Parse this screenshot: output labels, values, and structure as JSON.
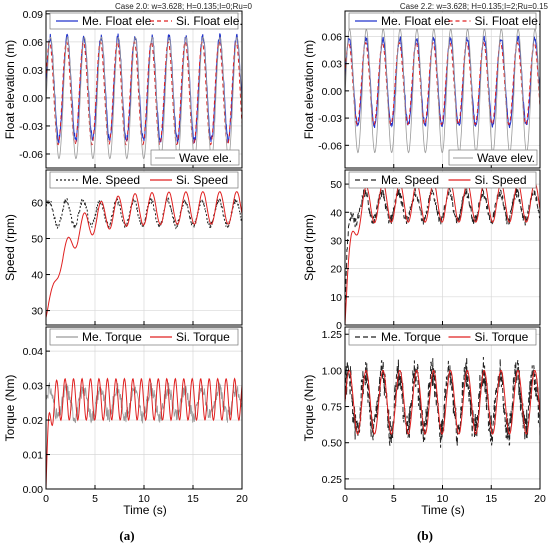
{
  "figure": {
    "colors": {
      "measured_float": "#2233cc",
      "simulated": "#e02020",
      "wave": "#9a9a9a",
      "measured_dark": "#222222",
      "grid": "#d8d8d8"
    },
    "columns": [
      {
        "caption": "Case 2.0: w=3.628; H=0.135;I=0;Ru=0",
        "panel_label": "(a)",
        "xlabel": "Time (s)",
        "xticks": [
          "0",
          "5",
          "10",
          "15",
          "20"
        ],
        "xlim": [
          0,
          20
        ]
      },
      {
        "caption": "Case 2.2: w=3.628; H=0.135;I=2;Ru=0.15",
        "panel_label": "(b)",
        "xlabel": "Time (s)",
        "xticks": [
          "0",
          "5",
          "10",
          "15",
          "20"
        ],
        "xlim": [
          0,
          20
        ]
      }
    ]
  },
  "chart_data": [
    {
      "type": "line",
      "column": 0,
      "row": 0,
      "ylabel": "Float elevation (m)",
      "ylim": [
        -0.075,
        0.093
      ],
      "yticks": [
        "0.09",
        "0.06",
        "0.03",
        "0.00",
        "-0.03",
        "-0.06"
      ],
      "ytick_values": [
        0.09,
        0.06,
        0.03,
        0.0,
        -0.03,
        -0.06
      ],
      "grid": true,
      "legend_top": "top",
      "legend_bottom": "bottom-right",
      "series": [
        {
          "name": "Me. Float ele.",
          "role": "measured_float",
          "legend": "top",
          "dash": "",
          "kind": "sine",
          "amp": 0.055,
          "offset": 0.01,
          "freq": 0.578,
          "phase": 0.0,
          "noise": 0.004
        },
        {
          "name": "Si. Float ele.",
          "role": "simulated",
          "legend": "top",
          "dash": "4,3",
          "kind": "sine",
          "amp": 0.055,
          "offset": 0.005,
          "freq": 0.578,
          "phase": 0.25,
          "noise": 0.0
        },
        {
          "name": "Wave ele.",
          "role": "wave",
          "legend": "bottom",
          "dash": "",
          "kind": "sine",
          "amp": 0.065,
          "offset": 0.0,
          "freq": 0.578,
          "phase": -0.1,
          "noise": 0.0
        }
      ]
    },
    {
      "type": "line",
      "column": 0,
      "row": 1,
      "ylabel": "Speed (rpm)",
      "ylim": [
        26,
        69
      ],
      "yticks": [
        "30",
        "40",
        "50",
        "60"
      ],
      "ytick_values": [
        30,
        40,
        50,
        60
      ],
      "grid": true,
      "legend_top": "top",
      "series": [
        {
          "name": "Me. Speed",
          "role": "measured_dark",
          "legend": "top",
          "dash": "2,2",
          "kind": "sine",
          "amp": 3.5,
          "offset": 57,
          "freq": 0.578,
          "phase": 0.4,
          "noise": 0.8
        },
        {
          "name": "Si. Speed",
          "role": "simulated",
          "legend": "top",
          "dash": "",
          "kind": "rise",
          "amp": 4.5,
          "offset": 58.5,
          "start": 28,
          "tau": 2.2,
          "freq": 0.578,
          "phase": 0.0,
          "noise": 0.0
        }
      ]
    },
    {
      "type": "line",
      "column": 0,
      "row": 2,
      "ylabel": "Torque (Nm)",
      "ylim": [
        0,
        0.047
      ],
      "yticks": [
        "0.00",
        "0.01",
        "0.02",
        "0.03",
        "0.04"
      ],
      "ytick_values": [
        0.0,
        0.01,
        0.02,
        0.03,
        0.04
      ],
      "grid": true,
      "legend_top": "top",
      "series": [
        {
          "name": "Me. Torque",
          "role": "wave",
          "legend": "top",
          "dash": "",
          "kind": "sine",
          "amp": 0.004,
          "offset": 0.025,
          "freq": 0.578,
          "phase": 0.3,
          "noise": 0.002
        },
        {
          "name": "Si. Torque",
          "role": "simulated",
          "legend": "top",
          "dash": "",
          "kind": "rise",
          "amp": 0.006,
          "offset": 0.026,
          "start": 0.0,
          "tau": 0.25,
          "freq": 1.156,
          "phase": 0.0,
          "noise": 0.0
        }
      ]
    },
    {
      "type": "line",
      "column": 1,
      "row": 0,
      "ylabel": "Float elevation (m)",
      "ylim": [
        -0.085,
        0.088
      ],
      "yticks": [
        "0.06",
        "0.03",
        "0.00",
        "-0.03",
        "-0.06"
      ],
      "ytick_values": [
        0.06,
        0.03,
        0.0,
        -0.03,
        -0.06
      ],
      "grid": true,
      "legend_top": "top",
      "legend_bottom": "bottom-right",
      "series": [
        {
          "name": "Me. Float ele.",
          "role": "measured_float",
          "legend": "top",
          "dash": "",
          "kind": "sine",
          "amp": 0.048,
          "offset": 0.01,
          "freq": 0.578,
          "phase": 0.0,
          "noise": 0.003
        },
        {
          "name": "Si. Float ele.",
          "role": "simulated",
          "legend": "top",
          "dash": "4,3",
          "kind": "sine",
          "amp": 0.045,
          "offset": 0.008,
          "freq": 0.578,
          "phase": 0.2,
          "noise": 0.0
        },
        {
          "name": "Wave elev.",
          "role": "wave",
          "legend": "bottom",
          "dash": "",
          "kind": "sine",
          "amp": 0.068,
          "offset": 0.0,
          "freq": 0.578,
          "phase": -0.1,
          "noise": 0.0
        }
      ]
    },
    {
      "type": "line",
      "column": 1,
      "row": 1,
      "ylabel": "Speed (rpm)",
      "ylim": [
        0,
        55
      ],
      "yticks": [
        "0",
        "10",
        "20",
        "30",
        "40",
        "50"
      ],
      "ytick_values": [
        0,
        10,
        20,
        30,
        40,
        50
      ],
      "grid": true,
      "legend_top": "top",
      "series": [
        {
          "name": "Me. Speed",
          "role": "measured_dark",
          "legend": "top",
          "dash": "5,3",
          "kind": "rise",
          "amp": 5,
          "offset": 42,
          "start": 5,
          "tau": 0.3,
          "freq": 0.578,
          "phase": 0.5,
          "noise": 1.8
        },
        {
          "name": "Si. Speed",
          "role": "simulated",
          "legend": "top",
          "dash": "",
          "kind": "rise",
          "amp": 7,
          "offset": 43.5,
          "start": 0,
          "tau": 0.6,
          "freq": 0.578,
          "phase": 0.0,
          "noise": 0.0
        }
      ]
    },
    {
      "type": "line",
      "column": 1,
      "row": 2,
      "ylabel": "Torque (Nm)",
      "ylim": [
        0.18,
        1.3
      ],
      "yticks": [
        "0.25",
        "0.50",
        "0.75",
        "1.00",
        "1.25"
      ],
      "ytick_values": [
        0.25,
        0.5,
        0.75,
        1.0,
        1.25
      ],
      "grid": true,
      "legend_top": "top",
      "series": [
        {
          "name": "Me. Torque",
          "role": "measured_dark",
          "legend": "top",
          "dash": "5,3",
          "kind": "sine",
          "amp": 0.2,
          "offset": 0.78,
          "freq": 0.578,
          "phase": 0.4,
          "noise": 0.12
        },
        {
          "name": "Si. Torque",
          "role": "simulated",
          "legend": "top",
          "dash": "",
          "kind": "sine",
          "amp": 0.22,
          "offset": 0.78,
          "freq": 0.578,
          "phase": 0.0,
          "noise": 0.0
        }
      ]
    }
  ]
}
